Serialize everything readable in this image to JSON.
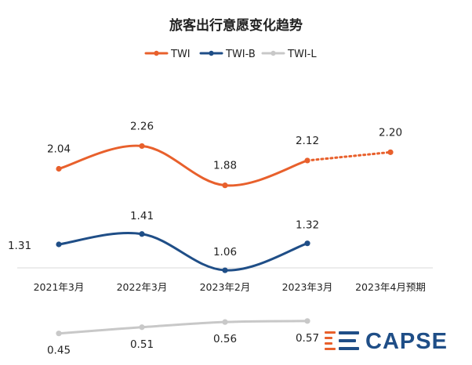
{
  "chart_data": {
    "type": "line",
    "title": "旅客出行意愿变化趋势",
    "categories": [
      "2021年3月",
      "2022年3月",
      "2023年2月",
      "2023年3月",
      "2023年4月预期"
    ],
    "series": [
      {
        "name": "TWI",
        "color": "#E8602C",
        "values": [
          2.04,
          2.26,
          1.88,
          2.12,
          2.2
        ],
        "dotted_from_index": 3
      },
      {
        "name": "TWI-B",
        "color": "#1F4E87",
        "values": [
          1.31,
          1.41,
          1.06,
          1.32,
          null
        ]
      },
      {
        "name": "TWI-L",
        "color": "#C8C8C8",
        "values": [
          0.45,
          0.51,
          0.56,
          0.57,
          null
        ]
      }
    ],
    "value_labels": {
      "TWI": [
        "2.04",
        "2.26",
        "1.88",
        "2.12",
        "2.20"
      ],
      "TWI-B": [
        "1.31",
        "1.41",
        "1.06",
        "1.32",
        null
      ],
      "TWI-L": [
        "0.45",
        "0.51",
        "0.56",
        "0.57",
        null
      ]
    },
    "legend_position": "top-center",
    "grid": false,
    "xlabel": "",
    "ylabel": ""
  },
  "brand": {
    "name": "CAPSE",
    "color": "#1F4E87",
    "accent": "#E8602C"
  }
}
